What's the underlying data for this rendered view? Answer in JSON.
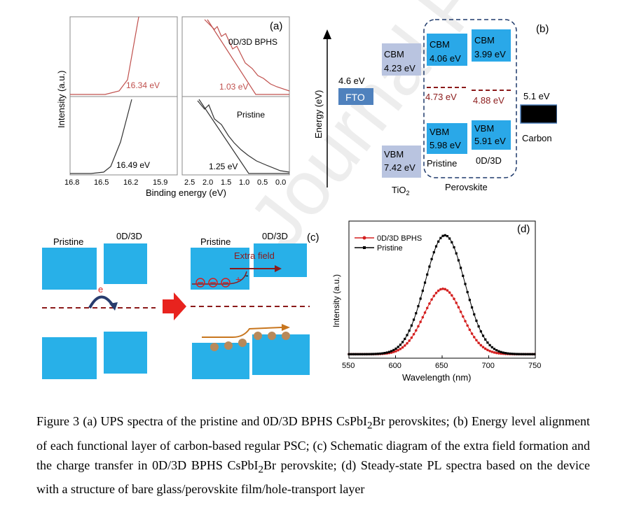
{
  "watermark": "Journal Pre-proofs",
  "panel_a": {
    "label": "(a)",
    "ylabel": "Intensity (a.u.)",
    "xlabel": "Binding energy (eV)",
    "left_ticks": [
      "16.8",
      "16.5",
      "16.2",
      "15.9"
    ],
    "right_ticks": [
      "2.5",
      "2.0",
      "1.5",
      "1.0",
      "0.5",
      "0.0"
    ],
    "series_top": "0D/3D BPHS",
    "series_bottom": "Pristine",
    "cutoff_top": "16.34 eV",
    "onset_top": "1.03 eV",
    "cutoff_bottom": "16.49 eV",
    "onset_bottom": "1.25 eV",
    "colors": {
      "bphs": "#c0504d",
      "pristine": "#333333"
    }
  },
  "panel_b": {
    "label": "(b)",
    "ylabel": "Energy (eV)",
    "fto_value": "4.6 eV",
    "fto_label": "FTO",
    "tio2_cbm_label": "CBM",
    "tio2_cbm_value": "4.23 eV",
    "tio2_vbm_label": "VBM",
    "tio2_vbm_value": "7.42 eV",
    "tio2_label": "TiO",
    "tio2_sub": "2",
    "pristine_cbm_label": "CBM",
    "pristine_cbm_value": "4.06 eV",
    "pristine_fermi": "4.73 eV",
    "pristine_vbm_label": "VBM",
    "pristine_vbm_value": "5.98 eV",
    "pristine_label": "Pristine",
    "od3d_cbm_label": "CBM",
    "od3d_cbm_value": "3.99 eV",
    "od3d_fermi": "4.88 eV",
    "od3d_vbm_label": "VBM",
    "od3d_vbm_value": "5.91 eV",
    "od3d_label": "0D/3D",
    "perovskite_label": "Perovskite",
    "carbon_value": "5.1 eV",
    "carbon_label": "Carbon",
    "colors": {
      "band": "#2aa8e8",
      "tio2": "#b9c4e0",
      "fto": "#4f81bd",
      "fermi": "#8b1a1a"
    }
  },
  "panel_c": {
    "label": "(c)",
    "left_pristine": "Pristine",
    "left_od3d": "0D/3D",
    "right_pristine": "Pristine",
    "right_od3d": "0D/3D",
    "extra_field": "Extra field",
    "electron": "e",
    "plus": "+",
    "minus": "-",
    "colors": {
      "block": "#28b0e8",
      "arrow": "#e8231e",
      "field": "#8b1a1a",
      "hole": "#b8895a",
      "path": "#c8761e"
    }
  },
  "panel_d": {
    "label": "(d)",
    "legend": [
      "0D/3D BPHS",
      "Pristine"
    ],
    "colors": {
      "bphs": "#d42020",
      "pristine": "#000000"
    }
  },
  "chart_data": {
    "type": "line",
    "title": "",
    "xlabel": "Wavelength (nm)",
    "ylabel": "Intensity (a.u.)",
    "xlim": [
      550,
      750
    ],
    "x_ticks": [
      "550",
      "600",
      "650",
      "700",
      "750"
    ],
    "series": [
      {
        "name": "0D/3D BPHS",
        "peak_wavelength": 651,
        "peak_intensity": 0.55,
        "fwhm": 48
      },
      {
        "name": "Pristine",
        "peak_wavelength": 653,
        "peak_intensity": 1.0,
        "fwhm": 50
      }
    ]
  },
  "caption": {
    "p1": "Figure 3 (a) UPS spectra of the pristine and 0D/3D BPHS CsPbI",
    "s1": "2",
    "p2": "Br perovskites; (b) Energy level alignment of each functional layer of carbon-based regular PSC; (c) Schematic diagram of the extra field formation and the charge transfer in 0D/3D BPHS CsPbI",
    "s2": "2",
    "p3": "Br perovskite; (d) Steady-state PL spectra based on the device with a structure of bare glass/perovskite film/hole-transport layer"
  }
}
